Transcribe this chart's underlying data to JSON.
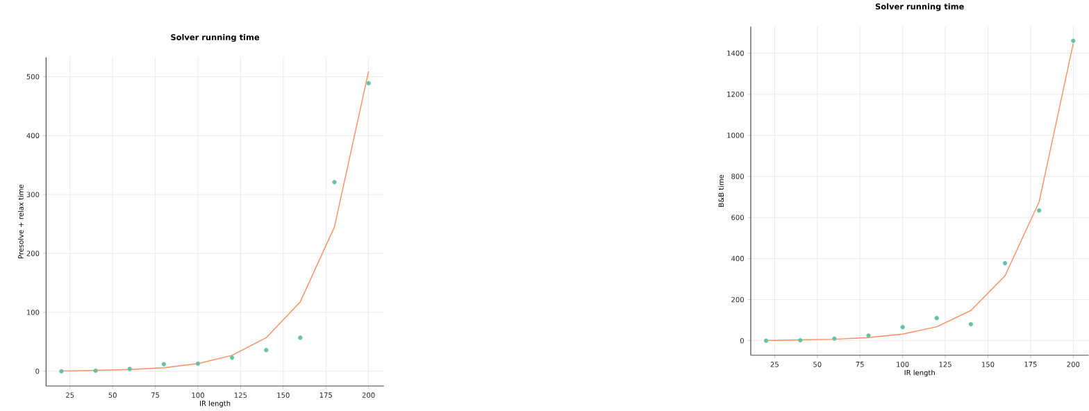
{
  "chart_data": [
    {
      "type": "scatter",
      "title": "Solver running time",
      "xlabel": "IR length",
      "ylabel": "Presolve + relax time",
      "x": [
        20,
        40,
        60,
        80,
        100,
        120,
        140,
        160,
        180,
        200
      ],
      "xlim": [
        11,
        209
      ],
      "ylim": [
        -25,
        533
      ],
      "xticks": [
        25,
        50,
        75,
        100,
        125,
        150,
        175,
        200
      ],
      "yticks": [
        0,
        100,
        200,
        300,
        400,
        500
      ],
      "grid": true,
      "series": [
        {
          "type": "line",
          "color": "#fc8d62",
          "marker": "none",
          "line_style": "solid",
          "values": [
            0.5,
            1.5,
            3,
            6,
            13,
            27,
            57,
            118,
            245,
            509
          ]
        },
        {
          "type": "scatter",
          "color": "#66c2a5",
          "marker": "circle",
          "values": [
            0,
            1,
            4,
            12,
            13,
            23,
            36,
            57,
            321,
            489
          ]
        }
      ]
    },
    {
      "type": "scatter",
      "title": "Solver running time",
      "xlabel": "IR length",
      "ylabel": "B&B time",
      "x": [
        20,
        40,
        60,
        80,
        100,
        120,
        140,
        160,
        180,
        200
      ],
      "xlim": [
        11,
        209
      ],
      "ylim": [
        -71,
        1530
      ],
      "xticks": [
        25,
        50,
        75,
        100,
        125,
        150,
        175,
        200
      ],
      "yticks": [
        0,
        200,
        400,
        600,
        800,
        1000,
        1200,
        1400
      ],
      "grid": true,
      "series": [
        {
          "type": "line",
          "color": "#fc8d62",
          "marker": "none",
          "line_style": "solid",
          "values": [
            1,
            4,
            7,
            15,
            32,
            68,
            147,
            316,
            676,
            1447
          ]
        },
        {
          "type": "scatter",
          "color": "#66c2a5",
          "marker": "circle",
          "values": [
            0,
            2,
            10,
            25,
            66,
            110,
            80,
            377,
            634,
            1460
          ]
        }
      ]
    }
  ]
}
